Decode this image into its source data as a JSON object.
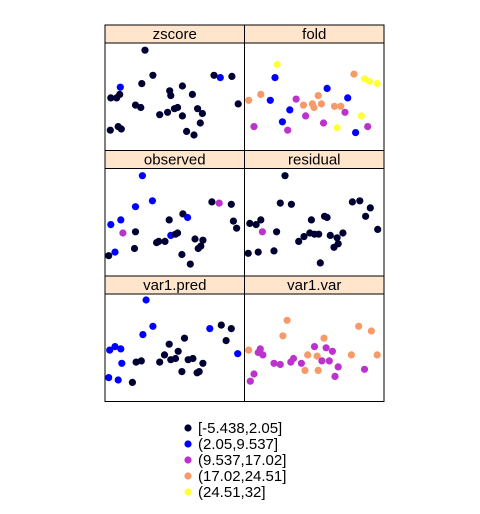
{
  "chart_data": {
    "type": "scatter",
    "layout": "trellis-3x2",
    "strip_color": "#ffe5cc",
    "color_bins": [
      {
        "label": "[-5.438,2.05]",
        "color": "#000033"
      },
      {
        "label": "(2.05,9.537]",
        "color": "#0000ff"
      },
      {
        "label": "(9.537,17.02]",
        "color": "#bb33cc"
      },
      {
        "label": "(17.02,24.51]",
        "color": "#f79a6a"
      },
      {
        "label": "(24.51,32]",
        "color": "#ffff3a"
      }
    ],
    "panels": [
      {
        "title": "zscore",
        "points": [
          [
            7.5,
            1.7,
            0
          ],
          [
            7.6,
            4.4,
            0
          ],
          [
            8.7,
            4.4,
            0
          ],
          [
            9.0,
            2.0,
            0
          ],
          [
            9.3,
            4.7,
            0
          ],
          [
            9.4,
            5.3,
            1
          ],
          [
            9.6,
            1.8,
            0
          ],
          [
            12.3,
            3.8,
            0
          ],
          [
            13.3,
            3.6,
            0
          ],
          [
            13.5,
            5.6,
            0
          ],
          [
            14.1,
            8.4,
            0
          ],
          [
            15.6,
            6.3,
            0
          ],
          [
            16.9,
            3.0,
            0
          ],
          [
            18.4,
            3.2,
            0
          ],
          [
            18.8,
            5.0,
            0
          ],
          [
            19.0,
            4.6,
            0
          ],
          [
            19.7,
            3.5,
            0
          ],
          [
            20.3,
            3.6,
            0
          ],
          [
            21.2,
            5.4,
            0
          ],
          [
            21.2,
            2.9,
            0
          ],
          [
            22.0,
            1.6,
            0
          ],
          [
            23.1,
            4.7,
            0
          ],
          [
            23.4,
            1.3,
            0
          ],
          [
            24.1,
            3.5,
            0
          ],
          [
            24.6,
            2.3,
            0
          ],
          [
            25.0,
            3.1,
            0
          ],
          [
            27.2,
            6.3,
            0
          ],
          [
            28.4,
            6.1,
            1
          ],
          [
            30.6,
            6.2,
            0
          ],
          [
            31.8,
            3.9,
            0
          ]
        ]
      },
      {
        "title": "fold",
        "points": [
          [
            7.3,
            4.2,
            3
          ],
          [
            8.3,
            2.0,
            2
          ],
          [
            9.6,
            4.7,
            3
          ],
          [
            11.4,
            4.2,
            1
          ],
          [
            12.3,
            6.1,
            1
          ],
          [
            12.7,
            7.2,
            4
          ],
          [
            13.7,
            2.4,
            1
          ],
          [
            14.7,
            1.7,
            2
          ],
          [
            15.1,
            3.4,
            1
          ],
          [
            16.3,
            4.3,
            2
          ],
          [
            17.7,
            3.8,
            3
          ],
          [
            18.1,
            2.9,
            2
          ],
          [
            19.4,
            3.9,
            3
          ],
          [
            19.7,
            3.6,
            3
          ],
          [
            20.5,
            4.6,
            3
          ],
          [
            21.1,
            3.9,
            3
          ],
          [
            21.5,
            2.3,
            2
          ],
          [
            22.2,
            5.2,
            1
          ],
          [
            23.6,
            3.7,
            3
          ],
          [
            24.1,
            1.9,
            4
          ],
          [
            24.8,
            3.7,
            3
          ],
          [
            25.6,
            3.2,
            2
          ],
          [
            26.1,
            4.4,
            1
          ],
          [
            27.3,
            6.4,
            3
          ],
          [
            27.6,
            1.5,
            1
          ],
          [
            28.7,
            2.9,
            4
          ],
          [
            29.3,
            6.0,
            4
          ],
          [
            29.9,
            2.0,
            2
          ],
          [
            30.2,
            5.8,
            4
          ],
          [
            31.7,
            5.6,
            4
          ]
        ]
      },
      {
        "title": "observed",
        "points": [
          [
            7.2,
            1.7,
            0
          ],
          [
            7.6,
            4.3,
            1
          ],
          [
            8.4,
            2.0,
            1
          ],
          [
            9.5,
            4.7,
            1
          ],
          [
            9.9,
            3.6,
            2
          ],
          [
            12.1,
            2.3,
            0
          ],
          [
            12.3,
            3.7,
            0
          ],
          [
            12.3,
            5.8,
            1
          ],
          [
            13.6,
            8.4,
            1
          ],
          [
            15.5,
            6.3,
            1
          ],
          [
            16.3,
            2.8,
            0
          ],
          [
            16.7,
            2.9,
            0
          ],
          [
            17.9,
            2.9,
            0
          ],
          [
            18.7,
            4.7,
            0
          ],
          [
            19.0,
            3.4,
            1
          ],
          [
            19.9,
            3.5,
            0
          ],
          [
            20.3,
            3.6,
            0
          ],
          [
            21.1,
            1.8,
            0
          ],
          [
            21.3,
            5.2,
            0
          ],
          [
            22.2,
            4.9,
            1
          ],
          [
            22.7,
            1.0,
            0
          ],
          [
            23.6,
            3.1,
            0
          ],
          [
            24.2,
            2.3,
            0
          ],
          [
            24.7,
            2.5,
            0
          ],
          [
            25.1,
            3.0,
            0
          ],
          [
            26.8,
            6.2,
            0
          ],
          [
            28.2,
            6.1,
            2
          ],
          [
            30.5,
            6.0,
            0
          ],
          [
            31.5,
            4.0,
            0
          ],
          [
            30.9,
            4.6,
            0
          ]
        ]
      },
      {
        "title": "residual",
        "points": [
          [
            7.2,
            1.9,
            0
          ],
          [
            7.5,
            4.4,
            0
          ],
          [
            8.7,
            4.3,
            0
          ],
          [
            9.1,
            2.0,
            0
          ],
          [
            9.6,
            4.7,
            0
          ],
          [
            9.9,
            3.7,
            2
          ],
          [
            12.1,
            2.1,
            0
          ],
          [
            12.6,
            3.7,
            0
          ],
          [
            13.3,
            6.1,
            0
          ],
          [
            14.2,
            8.4,
            0
          ],
          [
            15.4,
            6.0,
            0
          ],
          [
            16.8,
            2.9,
            0
          ],
          [
            17.8,
            3.3,
            0
          ],
          [
            18.9,
            3.6,
            0
          ],
          [
            19.2,
            4.7,
            0
          ],
          [
            19.8,
            3.5,
            0
          ],
          [
            20.6,
            3.5,
            0
          ],
          [
            20.9,
            1.1,
            0
          ],
          [
            21.7,
            5.0,
            0
          ],
          [
            22.2,
            4.9,
            0
          ],
          [
            22.8,
            3.4,
            0
          ],
          [
            23.5,
            2.4,
            0
          ],
          [
            24.1,
            3.2,
            0
          ],
          [
            24.3,
            2.7,
            0
          ],
          [
            25.2,
            3.6,
            0
          ],
          [
            27.0,
            6.2,
            0
          ],
          [
            28.4,
            6.3,
            0
          ],
          [
            29.5,
            5.0,
            0
          ],
          [
            30.4,
            5.7,
            0
          ],
          [
            31.8,
            3.9,
            0
          ]
        ]
      },
      {
        "title": "var1.pred",
        "points": [
          [
            7.2,
            2.0,
            1
          ],
          [
            7.4,
            4.3,
            1
          ],
          [
            8.4,
            4.6,
            1
          ],
          [
            9.0,
            1.8,
            1
          ],
          [
            9.5,
            4.4,
            1
          ],
          [
            9.7,
            3.2,
            1
          ],
          [
            11.7,
            1.6,
            0
          ],
          [
            12.4,
            3.3,
            0
          ],
          [
            13.4,
            3.4,
            0
          ],
          [
            13.7,
            5.6,
            1
          ],
          [
            14.3,
            8.5,
            1
          ],
          [
            15.6,
            6.3,
            1
          ],
          [
            16.9,
            3.3,
            0
          ],
          [
            17.8,
            3.9,
            0
          ],
          [
            18.7,
            4.8,
            0
          ],
          [
            19.0,
            3.5,
            0
          ],
          [
            19.9,
            3.6,
            0
          ],
          [
            20.4,
            4.2,
            0
          ],
          [
            21.1,
            2.5,
            0
          ],
          [
            21.6,
            5.3,
            0
          ],
          [
            22.3,
            3.5,
            0
          ],
          [
            23.2,
            3.6,
            0
          ],
          [
            24.0,
            2.4,
            0
          ],
          [
            24.4,
            2.5,
            0
          ],
          [
            25.1,
            3.2,
            0
          ],
          [
            26.4,
            6.1,
            1
          ],
          [
            28.6,
            6.4,
            0
          ],
          [
            29.5,
            5.1,
            0
          ],
          [
            30.5,
            6.1,
            0
          ],
          [
            31.7,
            4.0,
            1
          ]
        ]
      },
      {
        "title": "var1.var",
        "points": [
          [
            7.3,
            4.3,
            3
          ],
          [
            7.6,
            1.7,
            2
          ],
          [
            8.3,
            2.3,
            2
          ],
          [
            9.1,
            4.1,
            2
          ],
          [
            9.5,
            4.4,
            2
          ],
          [
            10.0,
            3.9,
            2
          ],
          [
            12.1,
            3.2,
            2
          ],
          [
            13.3,
            3.1,
            2
          ],
          [
            13.8,
            5.5,
            3
          ],
          [
            14.6,
            6.8,
            3
          ],
          [
            15.3,
            3.3,
            2
          ],
          [
            15.8,
            3.6,
            2
          ],
          [
            17.3,
            3.2,
            2
          ],
          [
            18.0,
            2.6,
            3
          ],
          [
            18.5,
            3.9,
            3
          ],
          [
            19.8,
            4.6,
            2
          ],
          [
            20.3,
            3.8,
            3
          ],
          [
            20.5,
            2.6,
            3
          ],
          [
            21.2,
            3.4,
            2
          ],
          [
            21.6,
            5.3,
            3
          ],
          [
            22.0,
            4.5,
            2
          ],
          [
            22.6,
            3.4,
            2
          ],
          [
            23.2,
            4.2,
            2
          ],
          [
            23.7,
            2.1,
            2
          ],
          [
            24.3,
            2.9,
            2
          ],
          [
            26.8,
            3.9,
            3
          ],
          [
            28.2,
            6.3,
            3
          ],
          [
            29.3,
            2.7,
            2
          ],
          [
            30.6,
            5.9,
            3
          ],
          [
            31.7,
            3.9,
            3
          ]
        ]
      }
    ]
  }
}
